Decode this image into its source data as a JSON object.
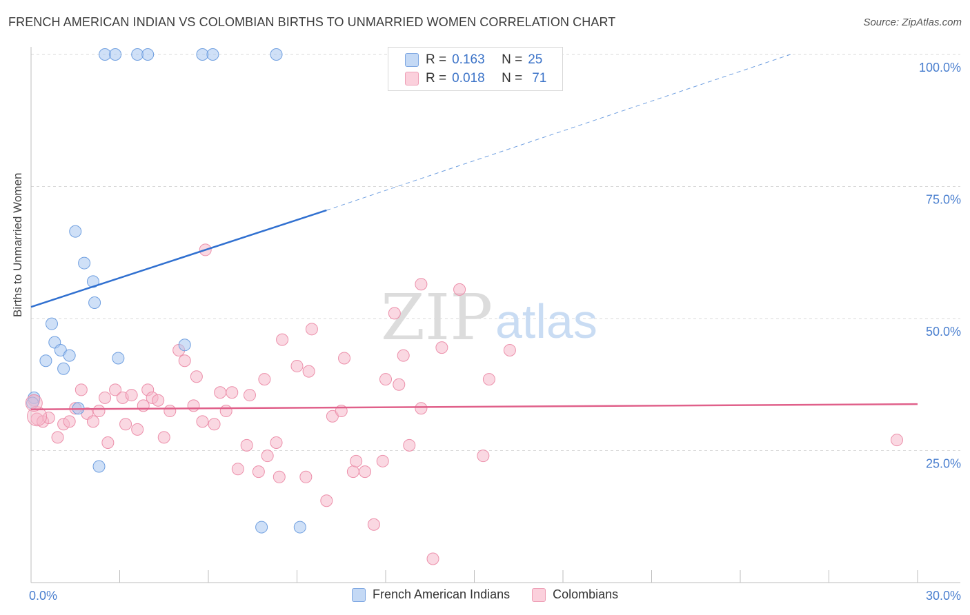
{
  "title": "FRENCH AMERICAN INDIAN VS COLOMBIAN BIRTHS TO UNMARRIED WOMEN CORRELATION CHART",
  "source": "Source: ZipAtlas.com",
  "watermark": {
    "zip": "ZIP",
    "atlas": "atlas"
  },
  "legend_top": {
    "rows": [
      {
        "r_label": "R =",
        "r_value": "0.163",
        "n_label": "N =",
        "n_value": "25",
        "color": "#a7c6f0"
      },
      {
        "r_label": "R =",
        "r_value": "0.018",
        "n_label": "N =",
        "n_value": "71",
        "color": "#f6b8ca"
      }
    ]
  },
  "legend_bottom": [
    {
      "label": "French American Indians",
      "color": "#a7c6f0"
    },
    {
      "label": "Colombians",
      "color": "#f6b8ca"
    }
  ],
  "chart_data": {
    "type": "scatter",
    "xlabel": "",
    "ylabel": "Births to Unmarried Women",
    "xlim": [
      0,
      30
    ],
    "ylim": [
      0,
      100
    ],
    "x_tick_labels": [
      "0.0%",
      "30.0%"
    ],
    "y_tick_labels": [
      "25.0%",
      "50.0%",
      "75.0%",
      "100.0%"
    ],
    "y_ticks": [
      25,
      50,
      75,
      100
    ],
    "grid": "horizontal dashed",
    "series": [
      {
        "name": "French American Indians",
        "color": "#a7c6f0",
        "stroke": "#6f9fe0",
        "line_color": "#3070d0",
        "trend": {
          "x0": 0,
          "y0": 52.2,
          "x1": 10.0,
          "y1": 70.5,
          "dash_to_x": 25.7,
          "dash_to_y": 100
        },
        "points": [
          [
            0.1,
            35.0
          ],
          [
            0.5,
            42.0
          ],
          [
            0.7,
            49.0
          ],
          [
            0.8,
            45.5
          ],
          [
            1.0,
            44.0
          ],
          [
            1.1,
            40.5
          ],
          [
            1.3,
            43.0
          ],
          [
            1.5,
            66.5
          ],
          [
            1.6,
            33.0
          ],
          [
            1.8,
            60.5
          ],
          [
            2.1,
            57.0
          ],
          [
            2.15,
            53.0
          ],
          [
            2.3,
            22.0
          ],
          [
            2.5,
            100
          ],
          [
            2.85,
            100
          ],
          [
            2.95,
            42.5
          ],
          [
            3.6,
            100
          ],
          [
            3.95,
            100
          ],
          [
            5.2,
            45.0
          ],
          [
            5.8,
            100
          ],
          [
            6.15,
            100
          ],
          [
            7.8,
            10.5
          ],
          [
            8.3,
            100
          ],
          [
            9.1,
            10.5
          ],
          [
            0.05,
            34.0
          ]
        ]
      },
      {
        "name": "Colombians",
        "color": "#f6b8ca",
        "stroke": "#ec8faa",
        "line_color": "#e0608a",
        "trend": {
          "x0": 0,
          "y0": 32.8,
          "x1": 30,
          "y1": 33.8
        },
        "points": [
          [
            0.1,
            34.5
          ],
          [
            0.2,
            31.0
          ],
          [
            0.4,
            30.5
          ],
          [
            0.6,
            31.2
          ],
          [
            0.9,
            27.5
          ],
          [
            1.1,
            30.0
          ],
          [
            1.3,
            30.5
          ],
          [
            1.5,
            33.0
          ],
          [
            1.7,
            36.5
          ],
          [
            1.9,
            32.0
          ],
          [
            2.1,
            30.5
          ],
          [
            2.3,
            32.5
          ],
          [
            2.5,
            35.0
          ],
          [
            2.6,
            26.5
          ],
          [
            2.85,
            36.5
          ],
          [
            3.1,
            35.0
          ],
          [
            3.2,
            30.0
          ],
          [
            3.4,
            35.5
          ],
          [
            3.6,
            29.0
          ],
          [
            3.8,
            33.5
          ],
          [
            3.95,
            36.5
          ],
          [
            4.1,
            35.0
          ],
          [
            4.3,
            34.5
          ],
          [
            4.5,
            27.5
          ],
          [
            4.7,
            32.5
          ],
          [
            5.0,
            44.0
          ],
          [
            5.2,
            42.0
          ],
          [
            5.5,
            33.5
          ],
          [
            5.6,
            39.0
          ],
          [
            5.8,
            30.5
          ],
          [
            5.9,
            63.0
          ],
          [
            6.2,
            30.0
          ],
          [
            6.4,
            36.0
          ],
          [
            6.6,
            32.5
          ],
          [
            6.8,
            36.0
          ],
          [
            7.0,
            21.5
          ],
          [
            7.3,
            26.0
          ],
          [
            7.4,
            35.5
          ],
          [
            7.7,
            21.0
          ],
          [
            7.9,
            38.5
          ],
          [
            8.0,
            24.0
          ],
          [
            8.3,
            26.5
          ],
          [
            8.4,
            20.0
          ],
          [
            8.5,
            46.0
          ],
          [
            9.0,
            41.0
          ],
          [
            9.3,
            20.0
          ],
          [
            9.4,
            40.0
          ],
          [
            9.5,
            48.0
          ],
          [
            10.0,
            15.5
          ],
          [
            10.2,
            31.5
          ],
          [
            10.5,
            32.5
          ],
          [
            10.6,
            42.5
          ],
          [
            10.9,
            21.0
          ],
          [
            11.0,
            23.0
          ],
          [
            11.3,
            21.0
          ],
          [
            11.6,
            11.0
          ],
          [
            11.9,
            23.0
          ],
          [
            12.0,
            38.5
          ],
          [
            12.3,
            51.0
          ],
          [
            12.45,
            37.5
          ],
          [
            12.6,
            43.0
          ],
          [
            12.8,
            26.0
          ],
          [
            13.2,
            56.5
          ],
          [
            13.2,
            33.0
          ],
          [
            13.6,
            4.5
          ],
          [
            13.9,
            44.5
          ],
          [
            14.5,
            55.5
          ],
          [
            15.3,
            24.0
          ],
          [
            15.5,
            38.5
          ],
          [
            16.2,
            44.0
          ],
          [
            29.3,
            27.0
          ]
        ]
      }
    ]
  }
}
